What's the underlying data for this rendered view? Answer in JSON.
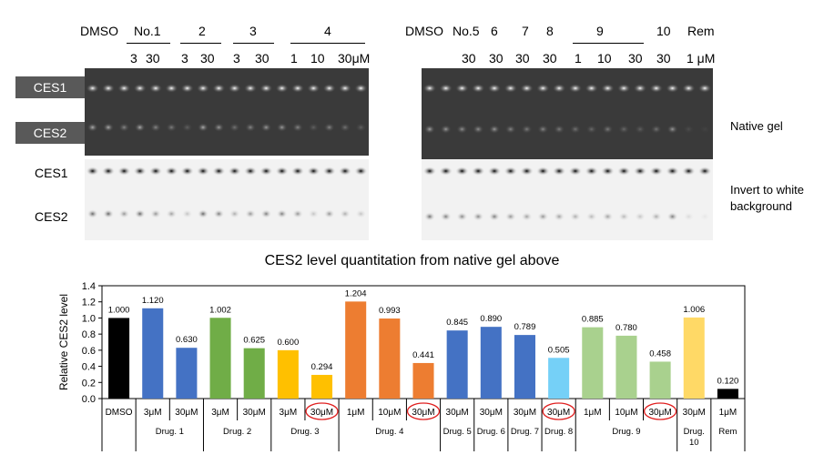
{
  "gel_panel": {
    "left_header": {
      "dmso": "DMSO",
      "groups": [
        {
          "name": "No.1",
          "doses": [
            "3",
            "30"
          ]
        },
        {
          "name": "2",
          "doses": [
            "3",
            "30"
          ]
        },
        {
          "name": "3",
          "doses": [
            "3",
            "30"
          ]
        },
        {
          "name": "4",
          "doses": [
            "1",
            "10",
            "30μM"
          ]
        }
      ]
    },
    "right_header": {
      "dmso": "DMSO",
      "groups": [
        {
          "name": "No.5",
          "doses": [
            "30"
          ]
        },
        {
          "name": "6",
          "doses": [
            "30"
          ]
        },
        {
          "name": "7",
          "doses": [
            "30"
          ]
        },
        {
          "name": "8",
          "doses": [
            "30"
          ]
        },
        {
          "name": "9",
          "doses": [
            "1",
            "10",
            "30"
          ]
        },
        {
          "name": "10",
          "doses": [
            "30"
          ]
        },
        {
          "name": "Rem",
          "doses": [
            "1 μM"
          ]
        }
      ]
    },
    "band_labels": {
      "ces1": "CES1",
      "ces2": "CES2"
    },
    "native_label": "Native gel",
    "invert_label_line1": "Invert to white",
    "invert_label_line2": "background"
  },
  "chart_title": "CES2 level quantitation from native gel above",
  "chart_data": {
    "type": "bar",
    "title": "CES2 level quantitation from native gel above",
    "xlabel": "",
    "ylabel": "Relative CES2 level",
    "ylim": [
      0,
      1.4
    ],
    "yticks": [
      "0.0",
      "0.2",
      "0.4",
      "0.6",
      "0.8",
      "1.0",
      "1.2",
      "1.4"
    ],
    "categories": [
      "DMSO",
      "3μM",
      "30μM",
      "3μM",
      "30μM",
      "3μM",
      "30μM",
      "1μM",
      "10μM",
      "30μM",
      "30μM",
      "30μM",
      "30μM",
      "30μM",
      "1μM",
      "10μM",
      "30μM",
      "30μM",
      "1μM"
    ],
    "values": [
      1.0,
      1.12,
      0.63,
      1.002,
      0.625,
      0.6,
      0.294,
      1.204,
      0.993,
      0.441,
      0.845,
      0.89,
      0.789,
      0.505,
      0.885,
      0.78,
      0.458,
      1.006,
      0.12
    ],
    "value_labels": [
      "1.000",
      "1.120",
      "0.630",
      "1.002",
      "0.625",
      "0.600",
      "0.294",
      "1.204",
      "0.993",
      "0.441",
      "0.845",
      "0.890",
      "0.789",
      "0.505",
      "0.885",
      "0.780",
      "0.458",
      "1.006",
      "0.120"
    ],
    "bar_colors": [
      "#000000",
      "#4472c4",
      "#4472c4",
      "#70ad47",
      "#70ad47",
      "#ffc000",
      "#ffc000",
      "#ed7d31",
      "#ed7d31",
      "#ed7d31",
      "#4472c4",
      "#4472c4",
      "#4472c4",
      "#75d0f7",
      "#a9d18e",
      "#a9d18e",
      "#a9d18e",
      "#ffd966",
      "#000000"
    ],
    "circled": [
      false,
      false,
      false,
      false,
      false,
      false,
      true,
      false,
      false,
      true,
      false,
      false,
      false,
      true,
      false,
      false,
      true,
      false,
      false
    ],
    "groups": [
      {
        "label": "",
        "span": 1
      },
      {
        "label": "Drug. 1",
        "span": 2
      },
      {
        "label": "Drug. 2",
        "span": 2
      },
      {
        "label": "Drug. 3",
        "span": 2
      },
      {
        "label": "Drug. 4",
        "span": 3
      },
      {
        "label": "Drug. 5",
        "span": 1
      },
      {
        "label": "Drug. 6",
        "span": 1
      },
      {
        "label": "Drug. 7",
        "span": 1
      },
      {
        "label": "Drug. 8",
        "span": 1
      },
      {
        "label": "Drug. 9",
        "span": 3
      },
      {
        "label": "Drug. 10",
        "span": 1
      },
      {
        "label": "Rem",
        "span": 1
      }
    ],
    "circle_color": "#e02020",
    "grid": false,
    "legend": "none"
  }
}
